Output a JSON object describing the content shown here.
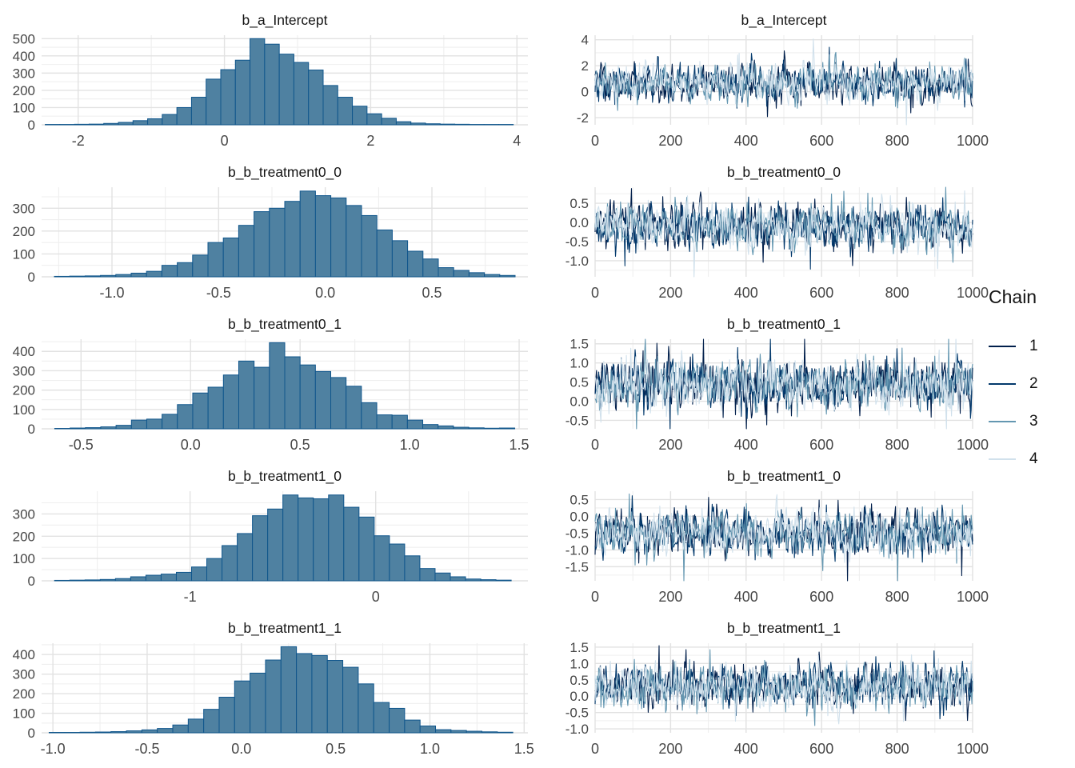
{
  "legend": {
    "title": "Chain",
    "items": [
      {
        "label": "1",
        "color": "#011f4b"
      },
      {
        "label": "2",
        "color": "#03396c"
      },
      {
        "label": "3",
        "color": "#6497b1"
      },
      {
        "label": "4",
        "color": "#d1e1ec"
      }
    ]
  },
  "style": {
    "background": "#ffffff",
    "hist_fill": "#4f81a1",
    "hist_stroke": "#10568c",
    "grid_major": "#e2e2e2",
    "grid_minor": "#efefef",
    "tick_label_color": "#474747",
    "title_color": "#141414"
  },
  "chart_data": [
    {
      "name": "b_a_Intercept",
      "histogram": {
        "type": "bar",
        "bin_start": -2.45,
        "bin_width": 0.2,
        "counts": [
          2,
          2,
          3,
          4,
          8,
          14,
          24,
          35,
          60,
          100,
          160,
          265,
          320,
          375,
          500,
          468,
          410,
          362,
          318,
          228,
          160,
          108,
          64,
          38,
          18,
          10,
          6,
          4,
          3,
          2,
          2,
          2
        ],
        "xlim": [
          -2.5,
          4.15
        ],
        "xtick_values": [
          -2,
          0,
          2,
          4
        ],
        "xtick_labels": [
          "-2",
          "0",
          "2",
          "4"
        ],
        "ylim": [
          0,
          520
        ],
        "ytick_values": [
          0,
          100,
          200,
          300,
          400,
          500
        ],
        "ytick_labels": [
          "0",
          "100",
          "200",
          "300",
          "400",
          "500"
        ]
      },
      "trace": {
        "type": "line",
        "x_range": [
          0,
          1000
        ],
        "xtick_values": [
          0,
          200,
          400,
          600,
          800,
          1000
        ],
        "xtick_labels": [
          "0",
          "200",
          "400",
          "600",
          "800",
          "1000"
        ],
        "ylim": [
          -2.55,
          4.35
        ],
        "ytick_values": [
          4,
          2,
          0,
          -2
        ],
        "ytick_labels": [
          "4",
          "2",
          "0",
          "-2"
        ],
        "mean": 0.68,
        "sd": 0.72,
        "n_chains": 4,
        "n_iterations": 1000
      }
    },
    {
      "name": "b_b_treatment0_0",
      "histogram": {
        "type": "bar",
        "bin_start": -1.27,
        "bin_width": 0.072,
        "counts": [
          2,
          3,
          4,
          6,
          10,
          16,
          24,
          50,
          62,
          95,
          150,
          170,
          225,
          285,
          300,
          330,
          375,
          355,
          345,
          312,
          268,
          205,
          158,
          112,
          78,
          40,
          28,
          18,
          10,
          6
        ],
        "xlim": [
          -1.33,
          0.95
        ],
        "xtick_values": [
          -1.0,
          -0.5,
          0.0,
          0.5
        ],
        "xtick_labels": [
          "-1.0",
          "-0.5",
          "0.0",
          "0.5"
        ],
        "ylim": [
          0,
          392
        ],
        "ytick_values": [
          0,
          100,
          200,
          300
        ],
        "ytick_labels": [
          "0",
          "100",
          "200",
          "300"
        ]
      },
      "trace": {
        "type": "line",
        "x_range": [
          0,
          1000
        ],
        "xtick_values": [
          0,
          200,
          400,
          600,
          800,
          1000
        ],
        "xtick_labels": [
          "0",
          "200",
          "400",
          "600",
          "800",
          "1000"
        ],
        "ylim": [
          -1.42,
          0.92
        ],
        "ytick_values": [
          0.5,
          0.0,
          -0.5,
          -1.0
        ],
        "ytick_labels": [
          "0.5",
          "0.0",
          "-0.5",
          "-1.0"
        ],
        "mean": -0.12,
        "sd": 0.3,
        "n_chains": 4,
        "n_iterations": 1000
      }
    },
    {
      "name": "b_b_treatment0_1",
      "histogram": {
        "type": "bar",
        "bin_start": -0.62,
        "bin_width": 0.07,
        "counts": [
          2,
          4,
          6,
          10,
          18,
          45,
          50,
          75,
          125,
          185,
          215,
          278,
          350,
          318,
          445,
          372,
          330,
          296,
          265,
          220,
          135,
          72,
          70,
          45,
          22,
          15,
          8,
          5,
          3,
          4
        ],
        "xlim": [
          -0.68,
          1.54
        ],
        "xtick_values": [
          -0.5,
          0.0,
          0.5,
          1.0,
          1.5
        ],
        "xtick_labels": [
          "-0.5",
          "0.0",
          "0.5",
          "1.0",
          "1.5"
        ],
        "ylim": [
          0,
          463
        ],
        "ytick_values": [
          0,
          100,
          200,
          300,
          400
        ],
        "ytick_labels": [
          "0",
          "100",
          "200",
          "300",
          "400"
        ]
      },
      "trace": {
        "type": "line",
        "x_range": [
          0,
          1000
        ],
        "xtick_values": [
          0,
          200,
          400,
          600,
          800,
          1000
        ],
        "xtick_labels": [
          "0",
          "200",
          "400",
          "600",
          "800",
          "1000"
        ],
        "ylim": [
          -0.72,
          1.62
        ],
        "ytick_values": [
          1.5,
          1.0,
          0.5,
          0.0,
          -0.5
        ],
        "ytick_labels": [
          "1.5",
          "1.0",
          "0.5",
          "0.0",
          "-0.5"
        ],
        "mean": 0.43,
        "sd": 0.33,
        "n_chains": 4,
        "n_iterations": 1000
      }
    },
    {
      "name": "b_b_treatment1_0",
      "histogram": {
        "type": "bar",
        "bin_start": -1.73,
        "bin_width": 0.082,
        "counts": [
          2,
          3,
          4,
          6,
          10,
          18,
          25,
          30,
          38,
          62,
          100,
          158,
          212,
          292,
          322,
          385,
          372,
          368,
          385,
          330,
          286,
          202,
          165,
          112,
          55,
          35,
          18,
          8,
          5,
          3
        ],
        "xlim": [
          -1.8,
          0.82
        ],
        "xtick_values": [
          -1,
          0
        ],
        "xtick_labels": [
          "-1",
          "0"
        ],
        "ylim": [
          0,
          402
        ],
        "ytick_values": [
          0,
          100,
          200,
          300
        ],
        "ytick_labels": [
          "0",
          "100",
          "200",
          "300"
        ]
      },
      "trace": {
        "type": "line",
        "x_range": [
          0,
          1000
        ],
        "xtick_values": [
          0,
          200,
          400,
          600,
          800,
          1000
        ],
        "xtick_labels": [
          "0",
          "200",
          "400",
          "600",
          "800",
          "1000"
        ],
        "ylim": [
          -1.92,
          0.75
        ],
        "ytick_values": [
          0.5,
          0.0,
          -0.5,
          -1.0,
          -1.5
        ],
        "ytick_labels": [
          "0.5",
          "0.0",
          "-0.5",
          "-1.0",
          "-1.5"
        ],
        "mean": -0.48,
        "sd": 0.33,
        "n_chains": 4,
        "n_iterations": 1000
      }
    },
    {
      "name": "b_b_treatment1_1",
      "histogram": {
        "type": "bar",
        "bin_start": -1.02,
        "bin_width": 0.082,
        "counts": [
          2,
          2,
          3,
          4,
          6,
          10,
          15,
          22,
          40,
          70,
          120,
          182,
          265,
          305,
          372,
          440,
          405,
          395,
          370,
          335,
          250,
          155,
          125,
          65,
          35,
          16,
          12,
          8,
          5,
          3
        ],
        "xlim": [
          -1.06,
          1.52
        ],
        "xtick_values": [
          -1.0,
          -0.5,
          0.0,
          0.5,
          1.0,
          1.5
        ],
        "xtick_labels": [
          "-1.0",
          "-0.5",
          "0.0",
          "0.5",
          "1.0",
          "1.5"
        ],
        "ylim": [
          0,
          458
        ],
        "ytick_values": [
          0,
          100,
          200,
          300,
          400
        ],
        "ytick_labels": [
          "0",
          "100",
          "200",
          "300",
          "400"
        ]
      },
      "trace": {
        "type": "line",
        "x_range": [
          0,
          1000
        ],
        "xtick_values": [
          0,
          200,
          400,
          600,
          800,
          1000
        ],
        "xtick_labels": [
          "0",
          "200",
          "400",
          "600",
          "800",
          "1000"
        ],
        "ylim": [
          -1.12,
          1.62
        ],
        "ytick_values": [
          1.5,
          1.0,
          0.5,
          0.0,
          -0.5,
          -1.0
        ],
        "ytick_labels": [
          "1.5",
          "1.0",
          "0.5",
          "0.0",
          "-0.5",
          "-1.0"
        ],
        "mean": 0.29,
        "sd": 0.34,
        "n_chains": 4,
        "n_iterations": 1000
      }
    }
  ]
}
